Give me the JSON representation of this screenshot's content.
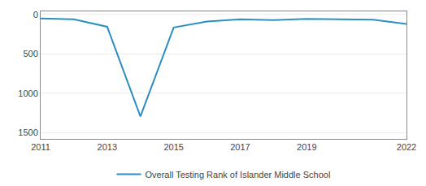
{
  "chart_data": {
    "type": "line",
    "x": [
      2011,
      2012,
      2013,
      2014,
      2015,
      2016,
      2017,
      2018,
      2019,
      2020,
      2021,
      2022
    ],
    "series": [
      {
        "name": "Overall Testing Rank of Islander Middle School",
        "color": "#2b8fc0",
        "values": [
          50,
          60,
          155,
          1295,
          165,
          90,
          60,
          70,
          55,
          60,
          65,
          120
        ]
      }
    ],
    "xlim": [
      2011,
      2022
    ],
    "xticks": [
      2011,
      2013,
      2015,
      2017,
      2019,
      2022
    ],
    "ylim": [
      1580,
      -40
    ],
    "yticks": [
      0,
      500,
      1000,
      1500
    ],
    "grid": "y",
    "legend": "bottom"
  }
}
